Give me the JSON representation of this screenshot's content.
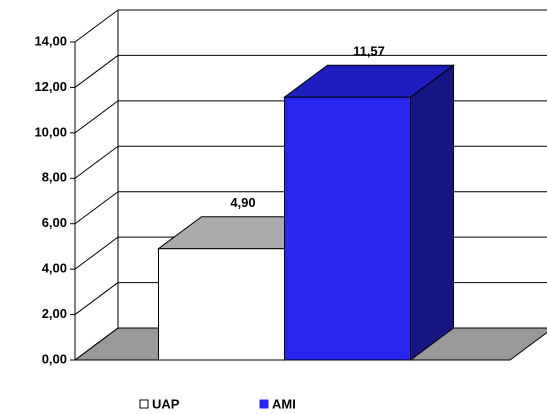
{
  "chart_data": {
    "type": "bar3d",
    "categories": [
      null
    ],
    "series": [
      {
        "name": "UAP",
        "color": "#ffffff",
        "values": [
          4.9
        ],
        "value_labels": [
          "4,90"
        ]
      },
      {
        "name": "AMI",
        "color": "#2626f0",
        "values": [
          11.57
        ],
        "value_labels": [
          "11,57"
        ]
      }
    ],
    "ylim": [
      0,
      14
    ],
    "yticks": [
      {
        "value": 0,
        "label": "0,00"
      },
      {
        "value": 2,
        "label": "2,00"
      },
      {
        "value": 4,
        "label": "4,00"
      },
      {
        "value": 6,
        "label": "6,00"
      },
      {
        "value": 8,
        "label": "8,00"
      },
      {
        "value": 10,
        "label": "10,00"
      },
      {
        "value": 12,
        "label": "12,00"
      },
      {
        "value": 14,
        "label": "14,00"
      }
    ],
    "grid": true
  }
}
